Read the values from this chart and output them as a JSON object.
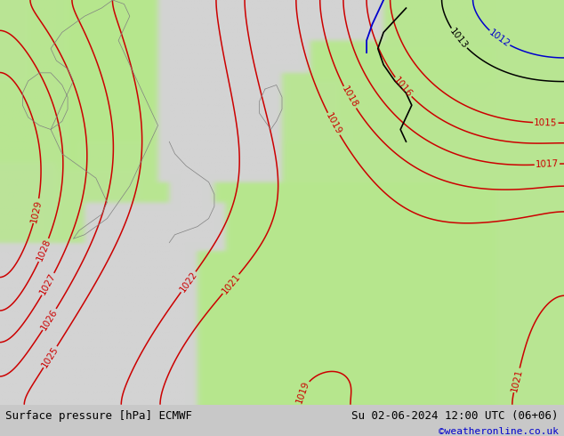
{
  "title_left": "Surface pressure [hPa] ECMWF",
  "title_right": "Su 02-06-2024 12:00 UTC (06+06)",
  "credit": "©weatheronline.co.uk",
  "bg_land_color": "#b5e88a",
  "bg_sea_color": "#d3d3d3",
  "contour_color_red": "#cc0000",
  "contour_color_black": "#000000",
  "contour_color_blue": "#0000cc",
  "contour_linewidth": 1.1,
  "label_fontsize": 7.5,
  "bottom_bar_color": "#c8c8c8",
  "bottom_text_color": "#000000",
  "credit_color": "#0000cc",
  "pressure_levels_red": [
    1015,
    1016,
    1017,
    1018,
    1019,
    1021,
    1022,
    1025,
    1026,
    1027,
    1028,
    1029
  ],
  "pressure_levels_black": [
    1013
  ],
  "pressure_levels_blue": [
    1012
  ],
  "figsize": [
    6.34,
    4.9
  ],
  "dpi": 100
}
